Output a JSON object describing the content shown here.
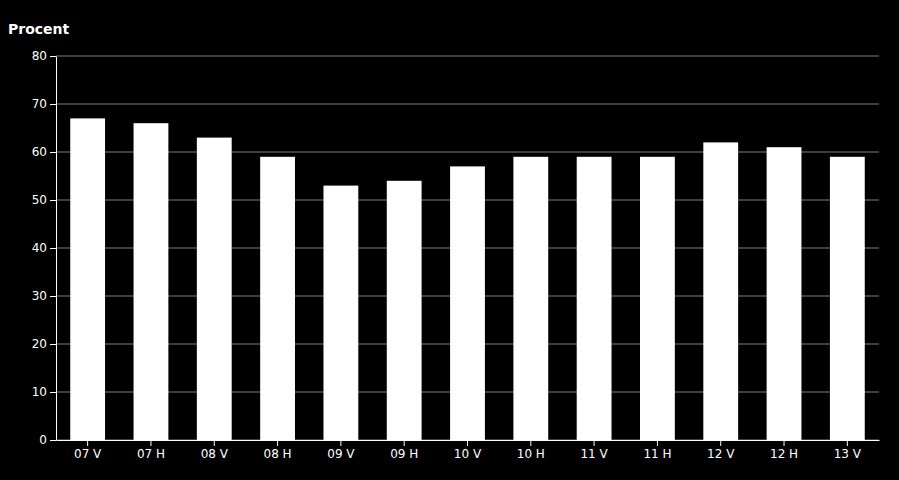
{
  "chart_data": {
    "type": "bar",
    "ylabel": "Procent",
    "categories": [
      "07 V",
      "07 H",
      "08 V",
      "08 H",
      "09 V",
      "09 H",
      "10 V",
      "10 H",
      "11 V",
      "11 H",
      "12 V",
      "12 H",
      "13 V"
    ],
    "values": [
      67,
      66,
      63,
      59,
      53,
      54,
      57,
      59,
      59,
      59,
      62,
      61,
      59
    ],
    "color": "#ffffff",
    "ylim": [
      0,
      80
    ],
    "yticks": [
      0,
      10,
      20,
      30,
      40,
      50,
      60,
      70,
      80
    ],
    "grid": true
  }
}
